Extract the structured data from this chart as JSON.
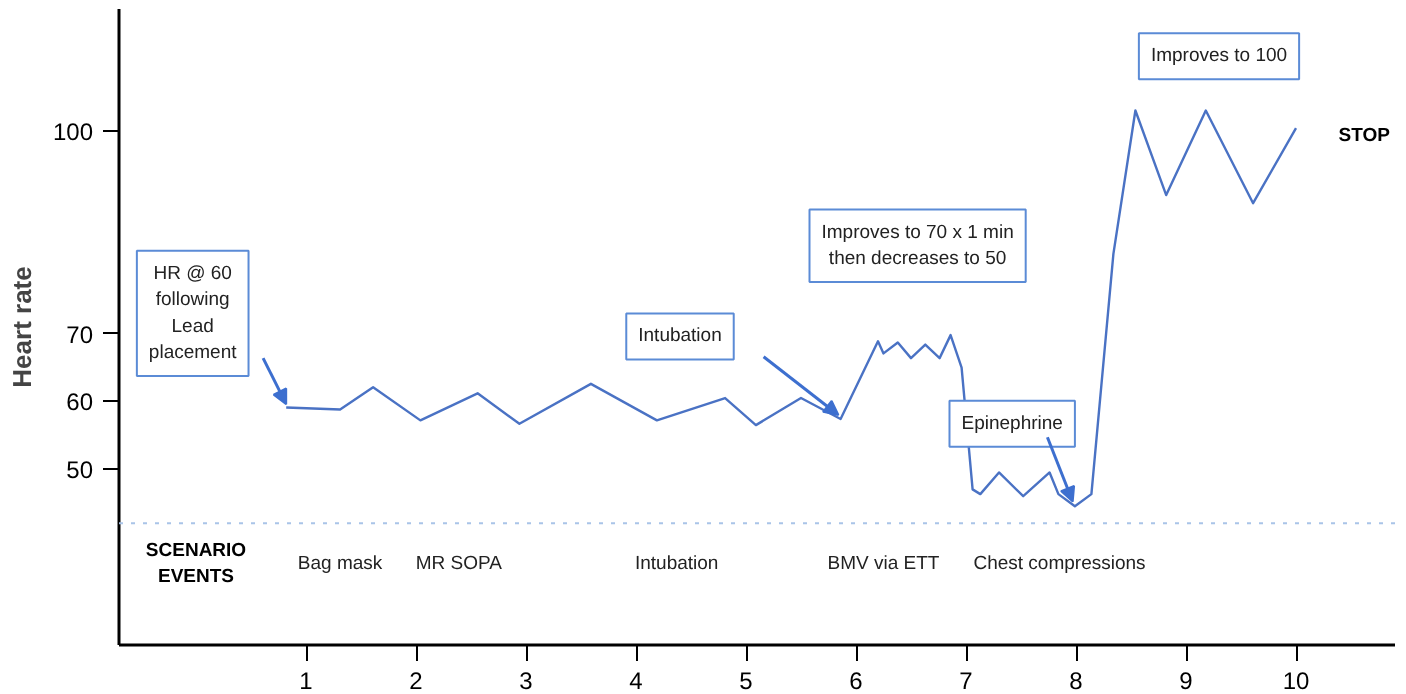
{
  "chart_data": {
    "type": "line",
    "ylabel": "Heart rate",
    "x": [
      0.82,
      1.31,
      1.61,
      2.04,
      2.56,
      2.94,
      3.59,
      4.19,
      4.81,
      5.09,
      5.5,
      5.86,
      6.2,
      6.25,
      6.38,
      6.5,
      6.63,
      6.76,
      6.86,
      6.96,
      7.06,
      7.13,
      7.3,
      7.52,
      7.76,
      7.84,
      7.99,
      8.14,
      8.34,
      8.54,
      8.82,
      9.18,
      9.61,
      10
    ],
    "series": [
      {
        "color": "#4a72c4",
        "values": [
          59.1,
          58.8,
          62.1,
          57.2,
          61.2,
          56.7,
          62.6,
          57.2,
          60.5,
          56.5,
          60.5,
          57.4,
          68.9,
          67.1,
          68.7,
          66.4,
          68.4,
          66.4,
          69.8,
          65.0,
          47.0,
          46.3,
          49.5,
          46.0,
          49.5,
          46.3,
          44.5,
          46.3,
          81.8,
          103,
          90.5,
          103,
          89.3,
          100.4
        ]
      }
    ],
    "xlim": [
      -0.7,
      10.9
    ],
    "xticks": [
      1,
      2,
      3,
      4,
      5,
      6,
      7,
      8,
      9,
      10
    ],
    "ylim": [
      24,
      118
    ],
    "yticks": [
      50,
      60,
      70,
      100
    ],
    "grid": false,
    "marker": "none",
    "line_style": "solid",
    "ref_lines": [
      {
        "axis": "y",
        "value": 42,
        "label": null,
        "color": "#a9c4e8",
        "line_style": "dotted"
      }
    ],
    "annotations": [
      "HR @ 60\nfollowing\nLead\nplacement",
      "Intubation",
      "Improves to 70 x 1 min\nthen decreases to 50",
      {
        "text": "Epinephrine",
        "x": 7.97,
        "y": 45.2
      },
      "Improves to 100",
      "STOP",
      "SCENARIO\nEVENTS",
      "Bag mask",
      "MR SOPA",
      "Intubation",
      "BMV via ETT",
      "Chest compressions"
    ]
  }
}
